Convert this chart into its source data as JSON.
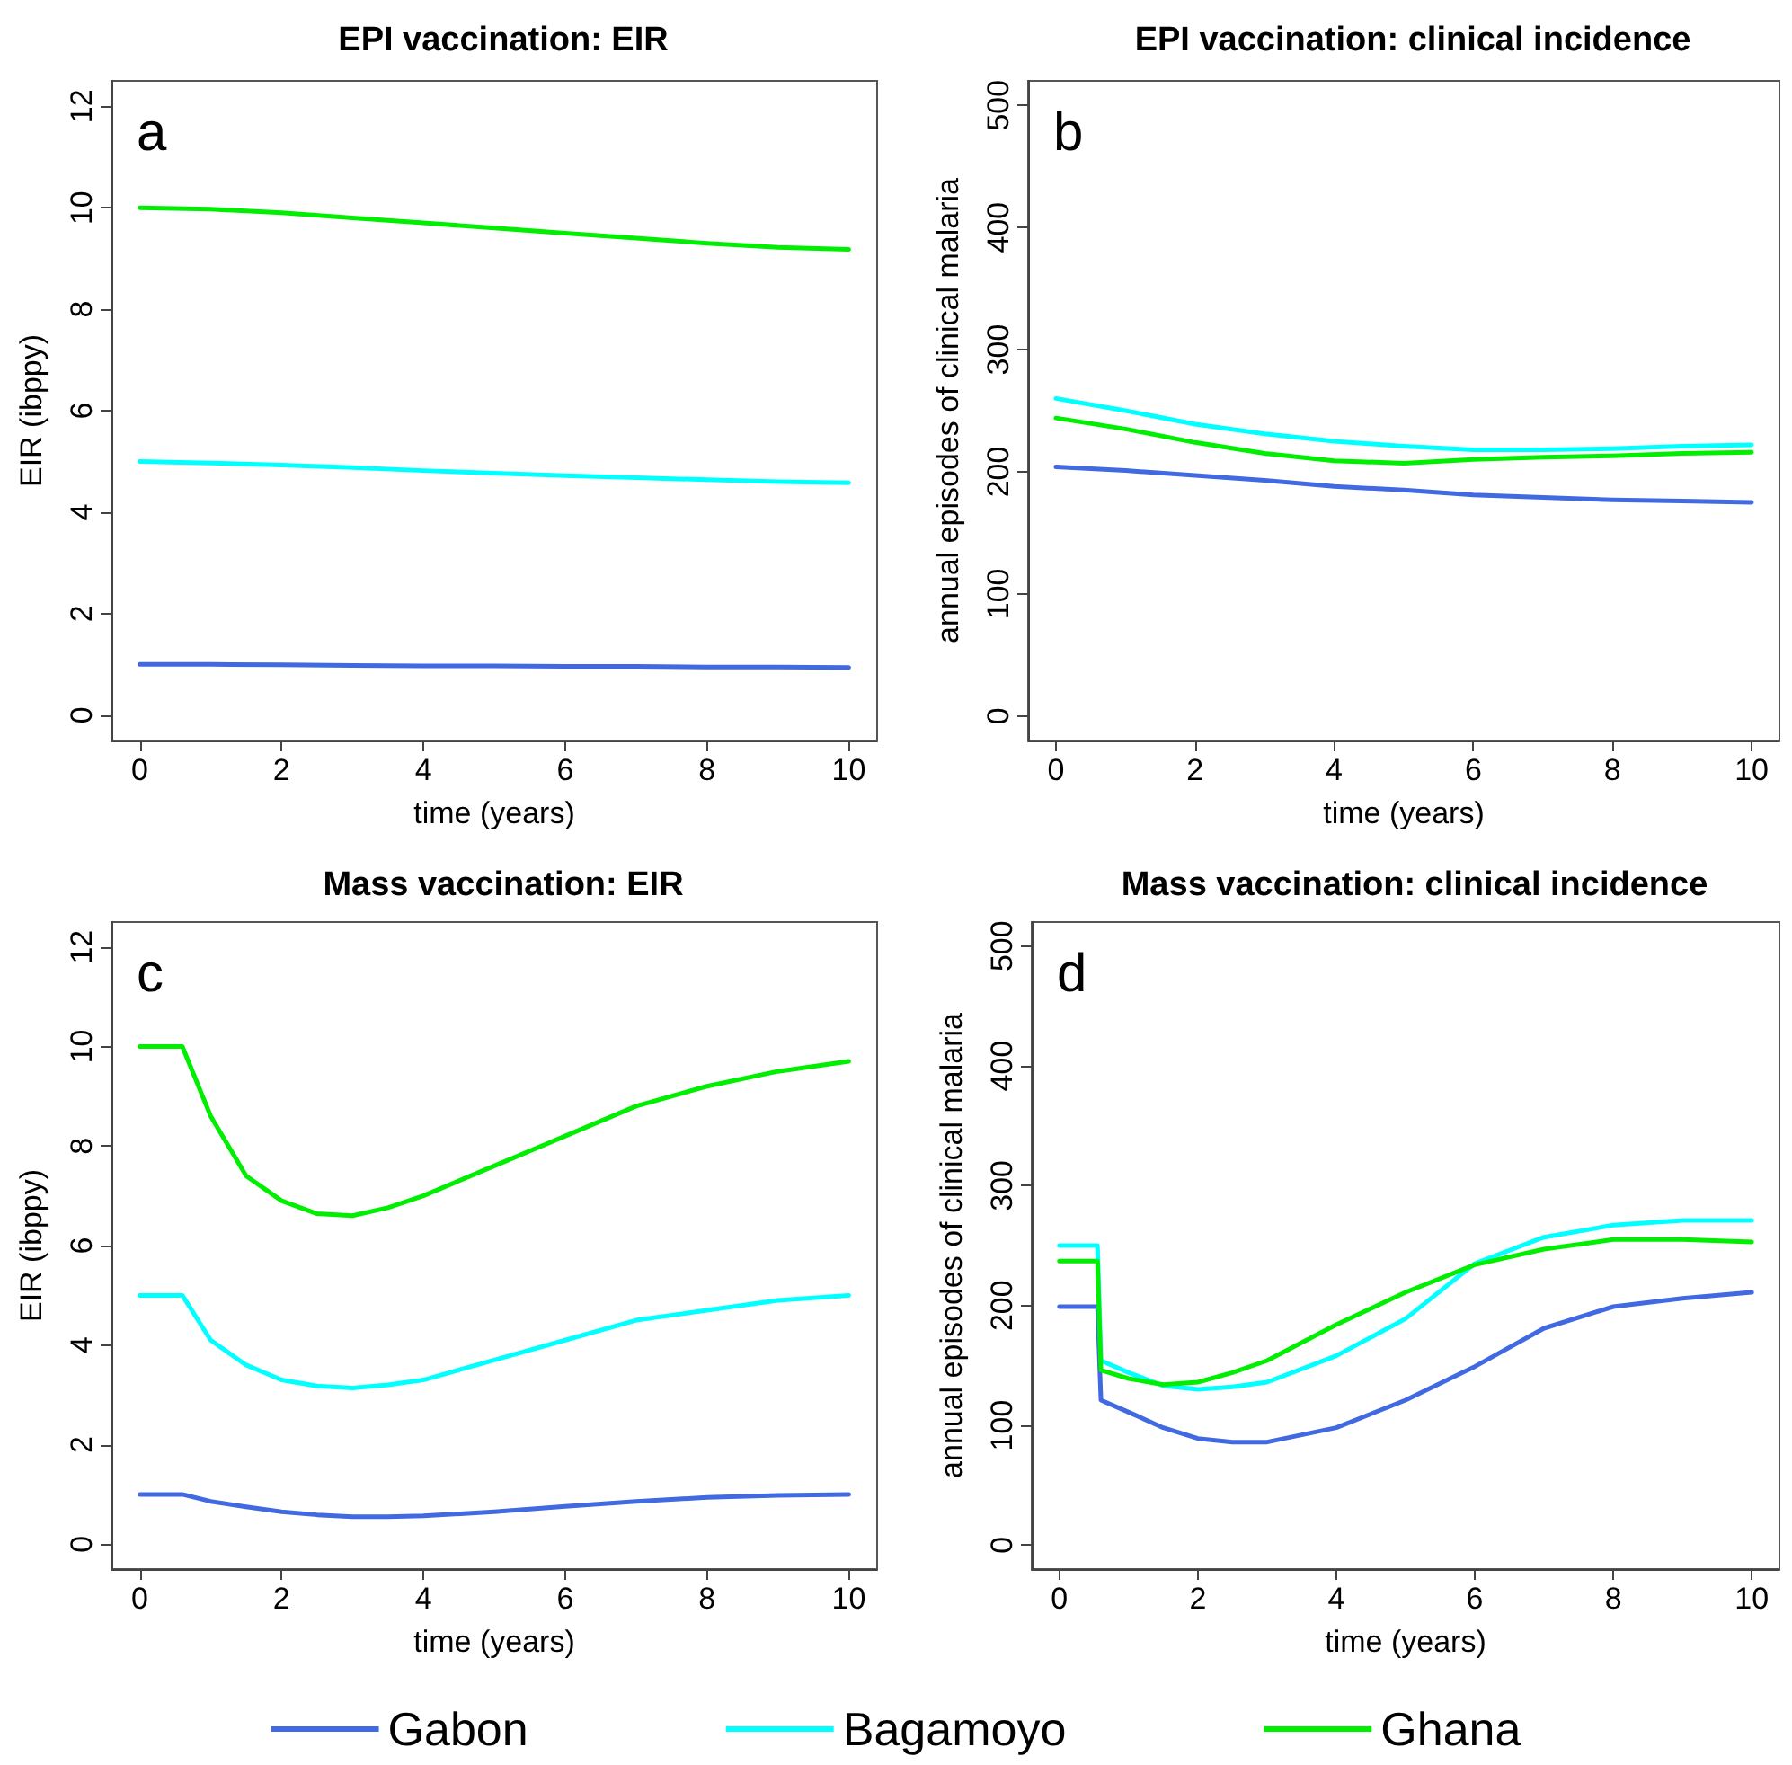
{
  "chart_data": [
    {
      "type": "line",
      "title": "EPI vaccination: EIR",
      "xlabel": "time (years)",
      "ylabel": "EIR (ibppy)",
      "annotations": [
        "a"
      ],
      "x": [
        0,
        1,
        2,
        3,
        4,
        5,
        6,
        7,
        8,
        9,
        10
      ],
      "xlim": [
        -0.4,
        10.4
      ],
      "xticks": [
        0,
        2,
        4,
        6,
        8,
        10
      ],
      "ylim": [
        -0.5,
        12.5
      ],
      "yticks": [
        0,
        2,
        4,
        6,
        8,
        10,
        12
      ],
      "grid": false,
      "legend": false,
      "series": [
        {
          "color": "#4169e1",
          "values": [
            1,
            1,
            0.99,
            0.98,
            0.97,
            0.97,
            0.96,
            0.96,
            0.95,
            0.95,
            0.94
          ]
        },
        {
          "color": "#00ffff",
          "values": [
            5,
            4.97,
            4.93,
            4.88,
            4.82,
            4.77,
            4.72,
            4.68,
            4.64,
            4.6,
            4.58
          ]
        },
        {
          "color": "#00ee00",
          "values": [
            10,
            9.97,
            9.9,
            9.8,
            9.7,
            9.6,
            9.5,
            9.4,
            9.3,
            9.22,
            9.18
          ]
        }
      ]
    },
    {
      "type": "line",
      "title": "EPI vaccination: clinical incidence",
      "xlabel": "time (years)",
      "ylabel": "annual episodes of clinical malaria",
      "annotations": [
        "b"
      ],
      "x": [
        0,
        1,
        2,
        3,
        4,
        5,
        6,
        7,
        8,
        9,
        10
      ],
      "xlim": [
        -0.4,
        10.4
      ],
      "xticks": [
        0,
        2,
        4,
        6,
        8,
        10
      ],
      "ylim": [
        -20,
        520
      ],
      "yticks": [
        0,
        100,
        200,
        300,
        400,
        500
      ],
      "grid": false,
      "legend": false,
      "series": [
        {
          "color": "#4169e1",
          "values": [
            204,
            201,
            197,
            193,
            188,
            185,
            181,
            179,
            177,
            176,
            175
          ]
        },
        {
          "color": "#00ffff",
          "values": [
            260,
            250,
            239,
            231,
            225,
            221,
            218,
            218,
            219,
            221,
            222
          ]
        },
        {
          "color": "#00ee00",
          "values": [
            244,
            235,
            224,
            215,
            209,
            207,
            210,
            212,
            213,
            215,
            216
          ]
        }
      ]
    },
    {
      "type": "line",
      "title": "Mass vaccination: EIR",
      "xlabel": "time (years)",
      "ylabel": "EIR (ibppy)",
      "annotations": [
        "c"
      ],
      "x": [
        0,
        0.6,
        1,
        1.5,
        2,
        2.5,
        3,
        3.5,
        4,
        5,
        6,
        7,
        8,
        9,
        10
      ],
      "xlim": [
        -0.4,
        10.4
      ],
      "xticks": [
        0,
        2,
        4,
        6,
        8,
        10
      ],
      "ylim": [
        -0.5,
        12.5
      ],
      "yticks": [
        0,
        2,
        4,
        6,
        8,
        10,
        12
      ],
      "grid": false,
      "legend": false,
      "series": [
        {
          "color": "#4169e1",
          "values": [
            1,
            1,
            0.86,
            0.75,
            0.65,
            0.59,
            0.55,
            0.55,
            0.57,
            0.65,
            0.76,
            0.86,
            0.94,
            0.98,
            1.0
          ]
        },
        {
          "color": "#00ffff",
          "values": [
            5,
            5,
            4.1,
            3.6,
            3.3,
            3.18,
            3.14,
            3.2,
            3.3,
            3.7,
            4.1,
            4.5,
            4.7,
            4.9,
            5.0
          ]
        },
        {
          "color": "#00ee00",
          "values": [
            10,
            10,
            8.6,
            7.4,
            6.9,
            6.64,
            6.6,
            6.76,
            7.0,
            7.6,
            8.2,
            8.8,
            9.2,
            9.5,
            9.7
          ]
        }
      ]
    },
    {
      "type": "line",
      "title": "Mass vaccination: clinical incidence",
      "xlabel": "time (years)",
      "ylabel": "annual episodes of clinical malaria",
      "annotations": [
        "d"
      ],
      "x": [
        0,
        0.55,
        0.6,
        1,
        1.5,
        2,
        2.5,
        3,
        4,
        5,
        6,
        7,
        8,
        9,
        10
      ],
      "xlim": [
        -0.4,
        10.4
      ],
      "xticks": [
        0,
        2,
        4,
        6,
        8,
        10
      ],
      "ylim": [
        -20,
        520
      ],
      "yticks": [
        0,
        100,
        200,
        300,
        400,
        500
      ],
      "grid": false,
      "legend": "bottom",
      "series": [
        {
          "name": "Gabon",
          "color": "#4169e1",
          "values": [
            199,
            199,
            121,
            111,
            98,
            89,
            86,
            86,
            98,
            121,
            149,
            181,
            199,
            206,
            211
          ]
        },
        {
          "name": "Bagamoyo",
          "color": "#00ffff",
          "values": [
            250,
            250,
            154,
            144,
            133,
            130,
            132,
            136,
            158,
            189,
            235,
            257,
            267,
            271,
            271
          ]
        },
        {
          "name": "Ghana",
          "color": "#00ee00",
          "values": [
            237,
            237,
            146,
            139,
            134,
            136,
            144,
            154,
            184,
            211,
            234,
            247,
            255,
            255,
            253
          ]
        }
      ]
    }
  ]
}
